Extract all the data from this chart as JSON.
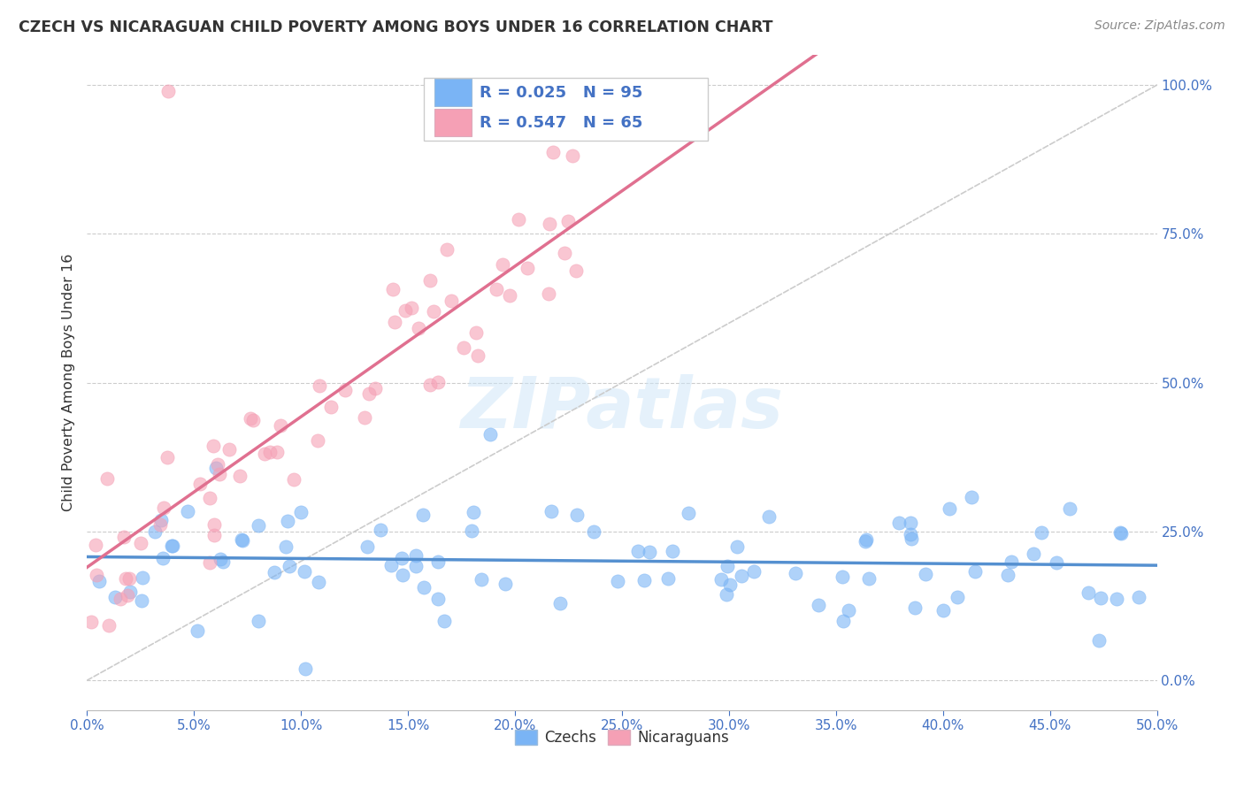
{
  "title": "CZECH VS NICARAGUAN CHILD POVERTY AMONG BOYS UNDER 16 CORRELATION CHART",
  "source": "Source: ZipAtlas.com",
  "ylabel": "Child Poverty Among Boys Under 16",
  "xlim": [
    0.0,
    0.5
  ],
  "ylim": [
    -0.05,
    1.05
  ],
  "yticks": [
    0.0,
    0.25,
    0.5,
    0.75,
    1.0
  ],
  "czech_color": "#7ab4f5",
  "nicaraguan_color": "#f5a0b5",
  "czech_line_color": "#5590d0",
  "nicaraguan_line_color": "#e07090",
  "czech_R": 0.025,
  "czech_N": 95,
  "nicaraguan_R": 0.547,
  "nicaraguan_N": 65,
  "watermark": "ZIPatlas",
  "background_color": "#ffffff",
  "grid_color": "#cccccc",
  "title_color": "#333333",
  "tick_color": "#4472c4",
  "ylabel_color": "#333333",
  "legend_text_color": "#4472c4",
  "ref_line_color": "#cccccc"
}
